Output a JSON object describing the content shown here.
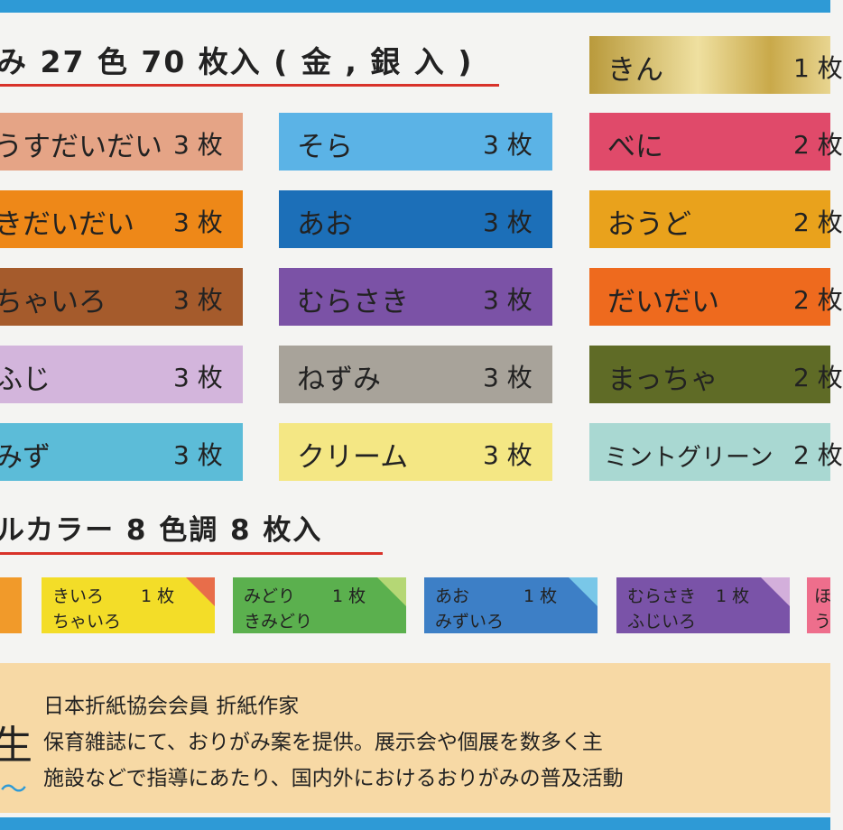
{
  "heading1": "み 27 色 70 枚入 ( 金 , 銀 入 )",
  "heading2": "ルカラー 8 色調 8 枚入",
  "swatches": [
    {
      "name": "うすだいだい",
      "count": "3 枚",
      "color": "#e5a486"
    },
    {
      "name": "きだいだい",
      "count": "3 枚",
      "color": "#ee8818"
    },
    {
      "name": "ちゃいろ",
      "count": "3 枚",
      "color": "#a55b2c"
    },
    {
      "name": "ふじ",
      "count": "3 枚",
      "color": "#d3b5dc"
    },
    {
      "name": "みず",
      "count": "3 枚",
      "color": "#5cbcd8"
    },
    {
      "name": "そら",
      "count": "3 枚",
      "color": "#5bb3e6"
    },
    {
      "name": "あお",
      "count": "3 枚",
      "color": "#1c6fb8"
    },
    {
      "name": "むらさき",
      "count": "3 枚",
      "color": "#7b52a6"
    },
    {
      "name": "ねずみ",
      "count": "3 枚",
      "color": "#a8a39a"
    },
    {
      "name": "クリーム",
      "count": "3 枚",
      "color": "#f4e784"
    },
    {
      "name": "きん",
      "count": "1 枚",
      "color": "#d5ba5c"
    },
    {
      "name": "べに",
      "count": "2 枚",
      "color": "#e04a6a"
    },
    {
      "name": "おうど",
      "count": "2 枚",
      "color": "#e9a21c"
    },
    {
      "name": "だいだい",
      "count": "2 枚",
      "color": "#ee6a1e"
    },
    {
      "name": "まっちゃ",
      "count": "2 枚",
      "color": "#5f6b26"
    },
    {
      "name": "ミントグリーン",
      "count": "2 枚",
      "color": "#a9d8d2"
    }
  ],
  "duals": [
    {
      "line1": "きいろ",
      "line2": "ちゃいろ",
      "count": "1 枚",
      "color": "#f3dd28",
      "fold": "#e86d4a"
    },
    {
      "line1": "みどり",
      "line2": "きみどり",
      "count": "1 枚",
      "color": "#5bb04e",
      "fold": "#b5d775"
    },
    {
      "line1": "あお",
      "line2": "みずいろ",
      "count": "1 枚",
      "color": "#3d7fc6",
      "fold": "#79c7e8"
    },
    {
      "line1": "むらさき",
      "line2": "ふじいろ",
      "count": "1 枚",
      "color": "#7a53a8",
      "fold": "#d3afdb"
    },
    {
      "line1": "ほ",
      "line2": "う",
      "count": "",
      "color": "#ee6e8c",
      "fold": "#f7c1cf"
    }
  ],
  "info": {
    "line1": "日本折紙協会会員 折紙作家",
    "line2": "保育雑誌にて、おりがみ案を提供。展示会や個展を数多く主",
    "line3": "施設などで指導にあたり、国内外におけるおりがみの普及活動"
  },
  "author_mark": "生",
  "colors": {
    "bar": "#2e9ad6",
    "underline": "#d8322a",
    "info_bg": "#f7d9a5"
  }
}
